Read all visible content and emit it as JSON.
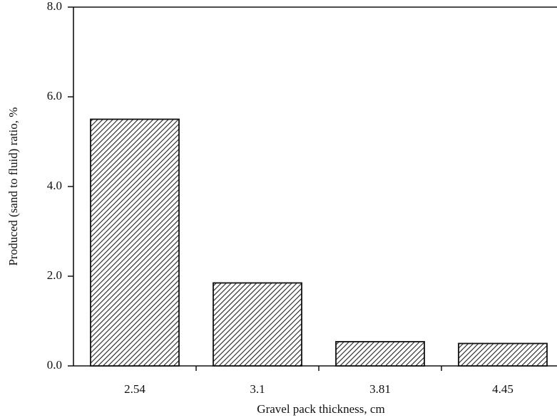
{
  "chart_data": {
    "type": "bar",
    "x_label": "Gravel pack thickness, cm",
    "y_label": "Produced (sand to fluid) ratio, %",
    "categories": [
      "2.54",
      "3.1",
      "3.81",
      "4.45"
    ],
    "values": [
      5.5,
      1.85,
      0.54,
      0.5
    ],
    "color": "#222222",
    "ylim": [
      0,
      8
    ],
    "yticks": [
      {
        "value": 0,
        "label": "0.0"
      },
      {
        "value": 2,
        "label": "2.0"
      },
      {
        "value": 4,
        "label": "4.0"
      },
      {
        "value": 6,
        "label": "6.0"
      },
      {
        "value": 8,
        "label": "8.0"
      }
    ]
  }
}
